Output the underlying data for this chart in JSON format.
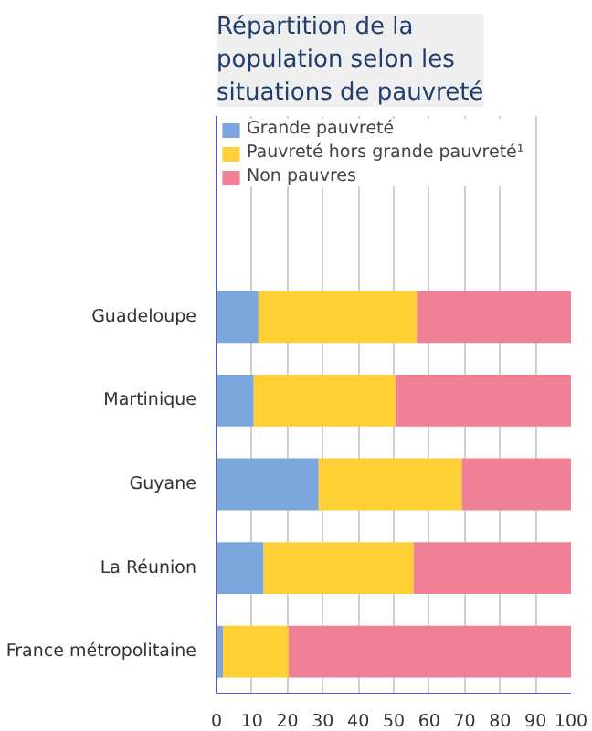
{
  "chart_data": {
    "type": "bar",
    "orientation": "horizontal",
    "stacked": true,
    "title": "Répartition de la population selon les situations de pauvreté",
    "categories": [
      "Guadeloupe",
      "Martinique",
      "Guyane",
      "La Réunion",
      "France métropolitaine"
    ],
    "series": [
      {
        "name": "Grande pauvreté",
        "color": "#7ba7dc",
        "values": [
          11.8,
          10.5,
          28.8,
          13.3,
          1.8
        ]
      },
      {
        "name": "Pauvreté hors grande pauvreté¹",
        "color": "#ffd035",
        "values": [
          44.7,
          39.9,
          40.4,
          42.3,
          18.5
        ]
      },
      {
        "name": "Non pauvres",
        "color": "#f08096",
        "values": [
          43.5,
          49.6,
          30.8,
          44.4,
          79.7
        ]
      }
    ],
    "xlim": [
      0,
      100
    ],
    "xticks": [
      0,
      10,
      20,
      30,
      40,
      50,
      60,
      70,
      80,
      90,
      100
    ],
    "grid": "x",
    "legend": "top"
  }
}
